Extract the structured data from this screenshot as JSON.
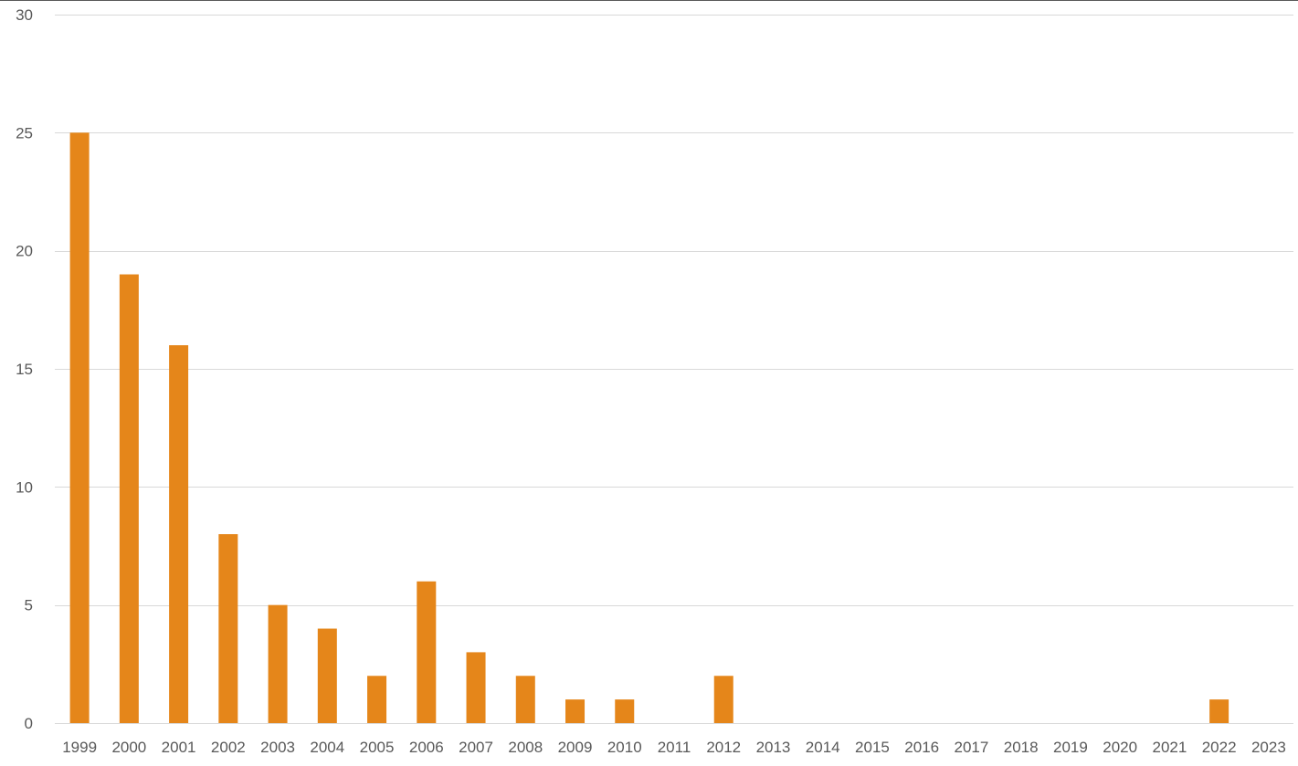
{
  "chart_data": {
    "type": "bar",
    "title": "",
    "xlabel": "",
    "ylabel": "",
    "categories": [
      "1999",
      "2000",
      "2001",
      "2002",
      "2003",
      "2004",
      "2005",
      "2006",
      "2007",
      "2008",
      "2009",
      "2010",
      "2011",
      "2012",
      "2013",
      "2014",
      "2015",
      "2016",
      "2017",
      "2018",
      "2019",
      "2020",
      "2021",
      "2022",
      "2023"
    ],
    "values": [
      25,
      19,
      16,
      8,
      5,
      4,
      2,
      6,
      3,
      2,
      1,
      1,
      0,
      2,
      0,
      0,
      0,
      0,
      0,
      0,
      0,
      0,
      0,
      1,
      0
    ],
    "ylim": [
      0,
      30
    ],
    "yticks": [
      0,
      5,
      10,
      15,
      20,
      25,
      30
    ],
    "grid": true,
    "legend": "none",
    "bar_color": "#E5861A",
    "grid_color": "#D9D9D9",
    "tick_label_color": "#595959"
  }
}
